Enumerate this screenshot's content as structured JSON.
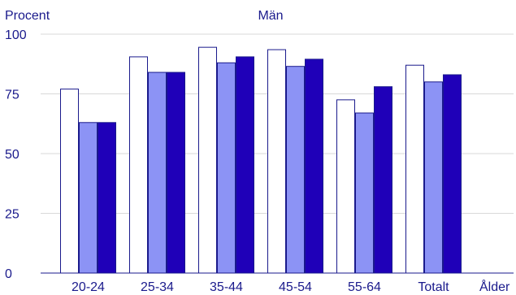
{
  "chart_data": {
    "type": "bar",
    "title": "Män",
    "ylabel": "Procent",
    "xlabel": "Ålder",
    "categories": [
      "20-24",
      "25-34",
      "35-44",
      "45-54",
      "55-64",
      "Totalt"
    ],
    "ylim": [
      0,
      100
    ],
    "yticks": [
      0,
      25,
      50,
      75,
      100
    ],
    "grid": true,
    "series": [
      {
        "values": [
          77,
          90.5,
          94.5,
          93.5,
          72.5,
          87
        ],
        "color": "#ffffff",
        "stroke": "#1a1a8c"
      },
      {
        "values": [
          63,
          84,
          88,
          86.5,
          67,
          80
        ],
        "color": "#8c93f5",
        "stroke": "#1a1a8c"
      },
      {
        "values": [
          63,
          84,
          90.5,
          89.5,
          78,
          83
        ],
        "color": "#1f00b8",
        "stroke": "#1a1a8c"
      }
    ],
    "text_color": "#1a1a8c",
    "grid_color": "#d9d9d9",
    "axis_color": "#1a1a8c"
  }
}
